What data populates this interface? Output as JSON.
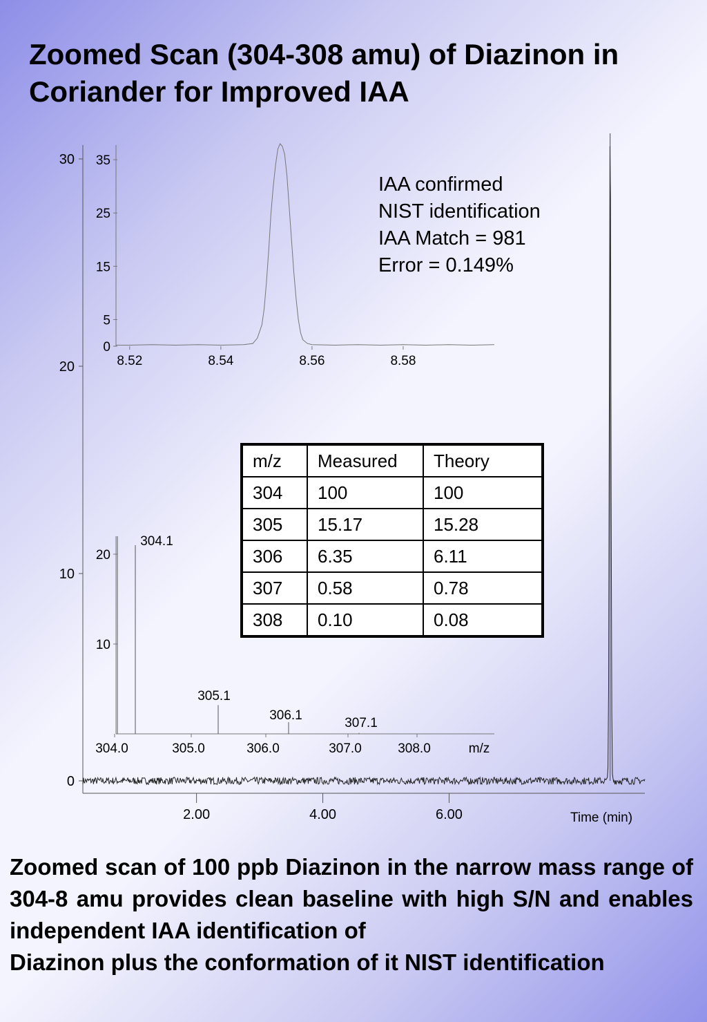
{
  "title": {
    "line1": "Zoomed Scan (304-308 amu) of Diazinon in",
    "line2": "Coriander for Improved IAA"
  },
  "annotation": [
    "IAA confirmed",
    "NIST identification",
    "IAA Match = 981",
    "Error = 0.149%"
  ],
  "table": {
    "headers": [
      "m/z",
      "Measured",
      "Theory"
    ],
    "rows": [
      [
        "304",
        "100",
        "100"
      ],
      [
        "305",
        "15.17",
        "15.28"
      ],
      [
        "306",
        "6.35",
        "6.11"
      ],
      [
        "307",
        "0.58",
        "0.78"
      ],
      [
        "308",
        "0.10",
        "0.08"
      ]
    ]
  },
  "caption": {
    "body": "Zoomed scan of 100 ppb Diazinon in the narrow mass range of  304-8 amu provides clean baseline with high S/N and enables independent IAA identification of",
    "last": "Diazinon plus the conformation of it NIST identification"
  },
  "chart_data": [
    {
      "type": "line",
      "name": "chromatogram",
      "xlabel": "Time (min)",
      "ylabel": "",
      "x_ticks": [
        "2.00",
        "4.00",
        "6.00"
      ],
      "y_ticks": [
        "0",
        "10",
        "20",
        "30"
      ],
      "xlim": [
        0.2,
        9.1
      ],
      "ylim": [
        0,
        30
      ],
      "baseline": 0,
      "peak": {
        "x": 8.55,
        "height": 32,
        "width": 0.012
      }
    },
    {
      "type": "line",
      "name": "zoomed-peak",
      "xlabel": "",
      "ylabel": "",
      "x_ticks": [
        "8.52",
        "8.54",
        "8.56",
        "8.58"
      ],
      "y_ticks": [
        "0",
        "5",
        "15",
        "25",
        "35"
      ],
      "xlim": [
        8.517,
        8.6
      ],
      "ylim": [
        0,
        38
      ],
      "points": [
        [
          8.517,
          0.2
        ],
        [
          8.52,
          0.2
        ],
        [
          8.525,
          0.3
        ],
        [
          8.53,
          0.2
        ],
        [
          8.535,
          0.3
        ],
        [
          8.54,
          0.2
        ],
        [
          8.545,
          0.3
        ],
        [
          8.547,
          0.5
        ],
        [
          8.548,
          1.5
        ],
        [
          8.549,
          4
        ],
        [
          8.5495,
          7
        ],
        [
          8.55,
          12
        ],
        [
          8.5505,
          18
        ],
        [
          8.551,
          25
        ],
        [
          8.5515,
          30
        ],
        [
          8.552,
          34
        ],
        [
          8.5525,
          37
        ],
        [
          8.553,
          38
        ],
        [
          8.5535,
          37.5
        ],
        [
          8.554,
          36
        ],
        [
          8.5545,
          32
        ],
        [
          8.555,
          26
        ],
        [
          8.5555,
          20
        ],
        [
          8.556,
          14
        ],
        [
          8.5565,
          9
        ],
        [
          8.557,
          5
        ],
        [
          8.5575,
          2.5
        ],
        [
          8.558,
          1.2
        ],
        [
          8.559,
          0.5
        ],
        [
          8.56,
          0.3
        ],
        [
          8.565,
          0.2
        ],
        [
          8.57,
          0.3
        ],
        [
          8.575,
          0.2
        ],
        [
          8.58,
          0.3
        ],
        [
          8.585,
          0.2
        ],
        [
          8.59,
          0.3
        ],
        [
          8.595,
          0.2
        ],
        [
          8.6,
          0.3
        ]
      ]
    },
    {
      "type": "bar",
      "name": "mass-spectrum",
      "xlabel": "m/z",
      "ylabel": "",
      "x_ticks": [
        "304.0",
        "305.0",
        "306.0",
        "307.0",
        "308.0"
      ],
      "y_ticks": [
        "10",
        "20"
      ],
      "xlim": [
        303.95,
        308.95
      ],
      "ylim": [
        0,
        22
      ],
      "peaks": [
        {
          "mz": 303.98,
          "intensity": 22,
          "label": ""
        },
        {
          "mz": 304.25,
          "intensity": 21,
          "label": "304.1"
        },
        {
          "mz": 305.25,
          "intensity": 3.2,
          "label": "305.1"
        },
        {
          "mz": 306.25,
          "intensity": 1.3,
          "label": "306.1"
        },
        {
          "mz": 307.25,
          "intensity": 0.1,
          "label": "307.1"
        }
      ]
    }
  ]
}
